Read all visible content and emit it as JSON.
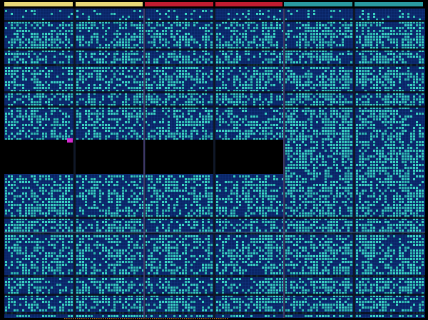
{
  "app": {
    "view": "device-floorplan"
  },
  "colors": {
    "background": "#000000",
    "tile_base": "#0a2566",
    "tile_grid": "#1c4fa8",
    "cell_used": "#3ad4c4",
    "cell_used_alt": "#2fb8b0",
    "column_divider": "#101828",
    "row_band": "#0b0f1a",
    "selected_cell": "#d42ad0",
    "region_outline": "#8a6fd0"
  },
  "clock_regions": {
    "header_colors": [
      "#e8d878",
      "#e8d878",
      "#c01c30",
      "#c01c30",
      "#2a9aa0",
      "#2a9aa0"
    ]
  },
  "occupancy": {
    "left_region_density": 0.58,
    "right_region_density": 0.66,
    "empty_band": true
  }
}
